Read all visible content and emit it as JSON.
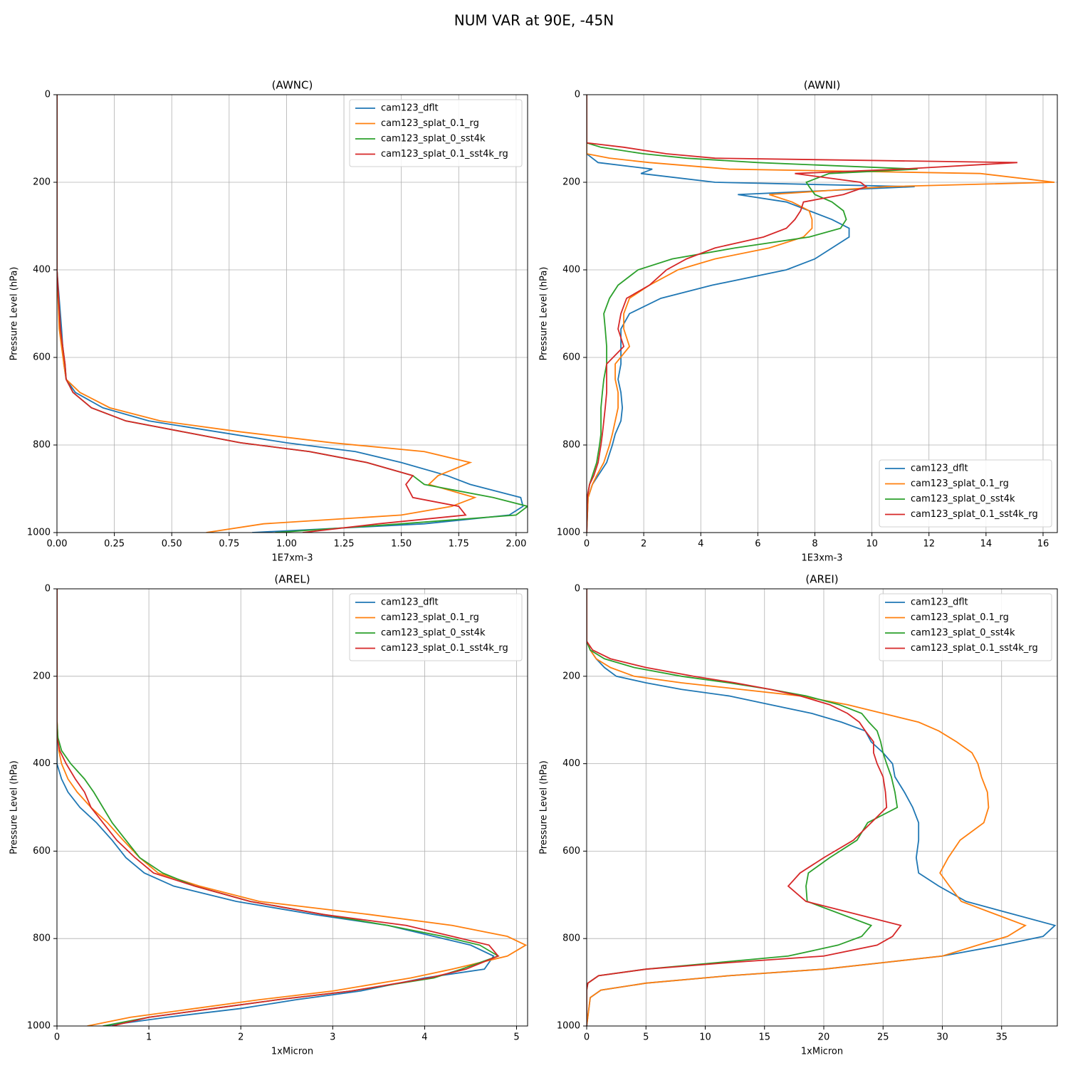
{
  "title": "NUM VAR at 90E, -45N",
  "chart_data": [
    {
      "type": "line",
      "title": "(AWNC)",
      "xlabel": "1E7xm-3",
      "ylabel": "Pressure Level (hPa)",
      "y": [
        0,
        400,
        535,
        615,
        650,
        680,
        715,
        745,
        770,
        795,
        815,
        840,
        870,
        890,
        920,
        940,
        960,
        980,
        1000
      ],
      "series": [
        {
          "name": "cam123_dflt",
          "color": "#1f77b4",
          "values": [
            0,
            0,
            0.02,
            0.03,
            0.04,
            0.08,
            0.2,
            0.4,
            0.7,
            1.0,
            1.3,
            1.5,
            1.7,
            1.8,
            2.02,
            2.03,
            1.97,
            1.6,
            0.85
          ]
        },
        {
          "name": "cam123_splat_0.1_rg",
          "color": "#ff7f0e",
          "values": [
            0,
            0,
            0.01,
            0.03,
            0.04,
            0.1,
            0.23,
            0.45,
            0.8,
            1.2,
            1.6,
            1.8,
            1.66,
            1.62,
            1.82,
            1.72,
            1.5,
            0.9,
            0.65
          ]
        },
        {
          "name": "cam123_splat_0_sst4k",
          "color": "#2ca02c",
          "values": [
            0,
            0,
            0.015,
            0.035,
            0.04,
            0.07,
            0.15,
            0.3,
            0.55,
            0.8,
            1.1,
            1.35,
            1.55,
            1.6,
            1.9,
            2.05,
            2.0,
            1.5,
            0.95
          ]
        },
        {
          "name": "cam123_splat_0.1_sst4k_rg",
          "color": "#d62728",
          "values": [
            0,
            0,
            0.015,
            0.035,
            0.04,
            0.07,
            0.15,
            0.3,
            0.55,
            0.8,
            1.1,
            1.35,
            1.55,
            1.52,
            1.55,
            1.75,
            1.78,
            1.4,
            1.07
          ]
        }
      ],
      "xlim": [
        0,
        2.05
      ],
      "xticks": [
        {
          "value": 0,
          "label": "0.00"
        },
        0.25,
        {
          "value": 0.5,
          "label": "0.50"
        },
        0.75,
        {
          "value": 1,
          "label": "1.00"
        },
        1.25,
        {
          "value": 1.5,
          "label": "1.50"
        },
        1.75,
        {
          "value": 2,
          "label": "2.00"
        }
      ],
      "ylim": [
        1000,
        0
      ],
      "yticks": [
        0,
        200,
        400,
        600,
        800,
        1000
      ],
      "grid": true,
      "legend": "upper right"
    },
    {
      "type": "line",
      "title": "(AWNI)",
      "xlabel": "1E3xm-3",
      "ylabel": "Pressure Level (hPa)",
      "y": [
        0,
        110,
        120,
        135,
        145,
        155,
        170,
        180,
        200,
        210,
        228,
        245,
        265,
        285,
        305,
        325,
        350,
        375,
        400,
        435,
        465,
        500,
        535,
        575,
        615,
        650,
        680,
        715,
        745,
        775,
        800,
        840,
        870,
        890,
        920,
        1000
      ],
      "series": [
        {
          "name": "cam123_dflt",
          "color": "#1f77b4",
          "values": [
            0,
            0,
            0,
            0,
            0.2,
            0.4,
            2.3,
            1.9,
            4.5,
            11.5,
            5.3,
            7.0,
            7.8,
            8.6,
            9.2,
            9.2,
            8.6,
            8.0,
            7.0,
            4.4,
            2.6,
            1.5,
            1.2,
            1.2,
            1.2,
            1.1,
            1.2,
            1.25,
            1.2,
            1.0,
            0.9,
            0.7,
            0.4,
            0.2,
            0.05,
            0
          ]
        },
        {
          "name": "cam123_splat_0.1_rg",
          "color": "#ff7f0e",
          "values": [
            0,
            0,
            0,
            0,
            0.8,
            2.2,
            5,
            13.8,
            16.4,
            10.5,
            6.4,
            7.2,
            7.8,
            7.9,
            7.9,
            7.6,
            6.4,
            4.5,
            3.2,
            2.2,
            1.5,
            1.3,
            1.3,
            1.5,
            1.0,
            1.0,
            1.1,
            1.1,
            1.0,
            0.9,
            0.8,
            0.6,
            0.35,
            0.2,
            0.05,
            0
          ]
        },
        {
          "name": "cam123_splat_0_sst4k",
          "color": "#2ca02c",
          "values": [
            0,
            0,
            0.5,
            2,
            3.5,
            6,
            11.6,
            8.5,
            7.7,
            7.8,
            8.0,
            8.6,
            9.0,
            9.1,
            8.9,
            7.8,
            5.2,
            3.0,
            1.8,
            1.1,
            0.8,
            0.6,
            0.65,
            0.7,
            0.7,
            0.6,
            0.55,
            0.5,
            0.5,
            0.5,
            0.45,
            0.35,
            0.2,
            0.1,
            0.02,
            0
          ]
        },
        {
          "name": "cam123_splat_0.1_sst4k_rg",
          "color": "#d62728",
          "values": [
            0,
            0,
            1.3,
            2.8,
            4.5,
            15.1,
            11,
            7.3,
            9.6,
            9.8,
            9.0,
            7.6,
            7.5,
            7.3,
            7.0,
            6.2,
            4.5,
            3.5,
            2.8,
            2.2,
            1.4,
            1.2,
            1.1,
            1.3,
            0.7,
            0.7,
            0.7,
            0.65,
            0.6,
            0.55,
            0.5,
            0.4,
            0.25,
            0.1,
            0.02,
            0
          ]
        }
      ],
      "xlim": [
        0,
        16.5
      ],
      "xticks": [
        0,
        2,
        4,
        6,
        8,
        10,
        12,
        14,
        16
      ],
      "ylim": [
        1000,
        0
      ],
      "yticks": [
        0,
        200,
        400,
        600,
        800,
        1000
      ],
      "grid": true,
      "legend": "lower right"
    },
    {
      "type": "line",
      "title": "(AREL)",
      "xlabel": "1xMicron",
      "ylabel": "Pressure Level (hPa)",
      "y": [
        0,
        300,
        340,
        370,
        400,
        435,
        465,
        500,
        535,
        575,
        615,
        650,
        680,
        715,
        745,
        770,
        795,
        815,
        840,
        870,
        890,
        920,
        940,
        960,
        980,
        1000
      ],
      "series": [
        {
          "name": "cam123_dflt",
          "color": "#1f77b4",
          "values": [
            0,
            0,
            0,
            0,
            0,
            0.05,
            0.12,
            0.25,
            0.43,
            0.6,
            0.75,
            0.95,
            1.27,
            1.95,
            2.8,
            3.6,
            4.1,
            4.5,
            4.75,
            4.65,
            4.0,
            3.3,
            2.6,
            2.0,
            1.2,
            0.5
          ]
        },
        {
          "name": "cam123_splat_0.1_rg",
          "color": "#ff7f0e",
          "values": [
            0,
            0,
            0.01,
            0.02,
            0.05,
            0.12,
            0.22,
            0.37,
            0.55,
            0.72,
            0.9,
            1.1,
            1.55,
            2.2,
            3.4,
            4.3,
            4.9,
            5.1,
            4.9,
            4.3,
            3.85,
            3.0,
            2.2,
            1.5,
            0.8,
            0.33
          ]
        },
        {
          "name": "cam123_splat_0_sst4k",
          "color": "#2ca02c",
          "values": [
            0,
            0,
            0.01,
            0.05,
            0.15,
            0.3,
            0.4,
            0.5,
            0.6,
            0.75,
            0.9,
            1.15,
            1.5,
            2.1,
            2.9,
            3.6,
            4.2,
            4.6,
            4.8,
            4.4,
            4.1,
            3.2,
            2.4,
            1.7,
            1.0,
            0.5
          ]
        },
        {
          "name": "cam123_splat_0.1_sst4k_rg",
          "color": "#d62728",
          "values": [
            0,
            0,
            0,
            0.03,
            0.1,
            0.2,
            0.3,
            0.37,
            0.5,
            0.65,
            0.85,
            1.05,
            1.5,
            2.1,
            2.9,
            3.8,
            4.3,
            4.7,
            4.8,
            4.45,
            4.05,
            3.2,
            2.4,
            1.7,
            1.0,
            0.6
          ]
        }
      ],
      "xlim": [
        0,
        5.12
      ],
      "xticks": [
        0,
        1,
        2,
        3,
        4,
        5
      ],
      "ylim": [
        1000,
        0
      ],
      "yticks": [
        0,
        200,
        400,
        600,
        800,
        1000
      ],
      "grid": true,
      "legend": "upper right"
    },
    {
      "type": "line",
      "title": "(AREI)",
      "xlabel": "1xMicron",
      "ylabel": "Pressure Level (hPa)",
      "y": [
        0,
        120,
        140,
        160,
        180,
        200,
        215,
        230,
        245,
        265,
        285,
        305,
        325,
        350,
        375,
        400,
        430,
        465,
        500,
        535,
        575,
        615,
        650,
        680,
        715,
        770,
        795,
        815,
        840,
        855,
        870,
        885,
        902,
        918,
        935,
        1000
      ],
      "series": [
        {
          "name": "cam123_dflt",
          "color": "#1f77b4",
          "values": [
            0,
            0,
            0.3,
            0.8,
            1.5,
            2.5,
            5,
            8,
            12,
            15.5,
            19,
            21.5,
            23.5,
            24,
            25,
            25.8,
            26,
            26.8,
            27.5,
            28,
            28,
            27.8,
            28,
            29.7,
            32,
            39.5,
            38.5,
            35,
            30,
            25,
            20,
            12,
            5,
            1.2,
            0.3,
            0
          ]
        },
        {
          "name": "cam123_splat_0.1_rg",
          "color": "#ff7f0e",
          "values": [
            0,
            0,
            0.3,
            0.8,
            2,
            4,
            8,
            13,
            18,
            22,
            25,
            28,
            29.7,
            31.2,
            32.5,
            33,
            33.3,
            33.8,
            33.9,
            33.5,
            31.5,
            30.5,
            29.8,
            30.6,
            31.6,
            37,
            35.5,
            33,
            30,
            25,
            20,
            12,
            5,
            1.2,
            0.3,
            0
          ]
        },
        {
          "name": "cam123_splat_0_sst4k",
          "color": "#2ca02c",
          "values": [
            0,
            0,
            0.3,
            1.5,
            4,
            8,
            12,
            15.5,
            18.5,
            21.3,
            23.2,
            23.8,
            24.5,
            24.8,
            25,
            25.3,
            25.7,
            26,
            26.2,
            23.7,
            22.8,
            20.5,
            18.7,
            18.5,
            18.6,
            24,
            23.2,
            21.2,
            17,
            11,
            5,
            1,
            0.1,
            0,
            0,
            0
          ]
        },
        {
          "name": "cam123_splat_0.1_sst4k_rg",
          "color": "#d62728",
          "values": [
            0,
            0,
            0.5,
            2,
            5,
            9,
            12.5,
            15.5,
            18,
            20.5,
            22,
            23,
            23.5,
            24.2,
            24.2,
            24.5,
            25,
            25.2,
            25.3,
            24,
            22.5,
            20,
            18,
            17,
            18.5,
            26.5,
            25.8,
            24.5,
            20,
            12,
            5,
            1,
            0.1,
            0,
            0,
            0
          ]
        }
      ],
      "xlim": [
        0,
        39.7
      ],
      "xticks": [
        0,
        5,
        10,
        15,
        20,
        25,
        30,
        35
      ],
      "ylim": [
        1000,
        0
      ],
      "yticks": [
        0,
        200,
        400,
        600,
        800,
        1000
      ],
      "grid": true,
      "legend": "upper right"
    }
  ]
}
